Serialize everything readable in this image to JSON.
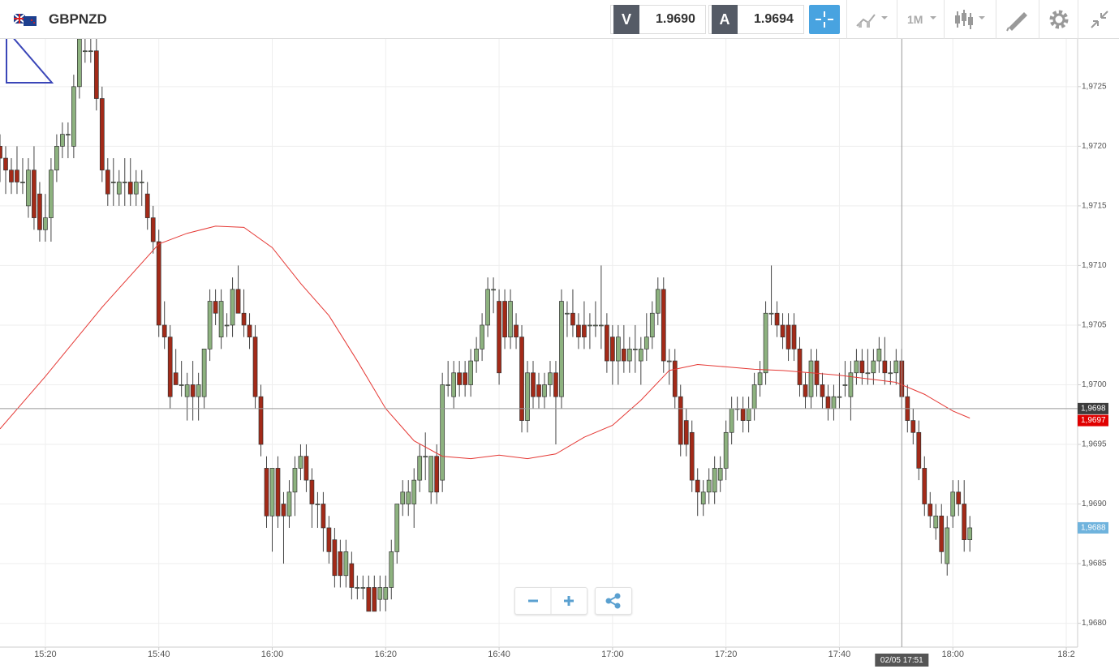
{
  "header": {
    "symbol": "GBPNZD",
    "bid_label": "V",
    "bid": "1.9690",
    "ask_label": "A",
    "ask": "1.9694",
    "timeframe": "1M"
  },
  "chart_data": {
    "type": "candlestick",
    "x": [
      "15:12",
      "15:13",
      "15:14",
      "15:15",
      "15:16",
      "15:17",
      "15:18",
      "15:19",
      "15:20",
      "15:21",
      "15:22",
      "15:23",
      "15:24",
      "15:25",
      "15:26",
      "15:27",
      "15:28",
      "15:29",
      "15:30",
      "15:31",
      "15:32",
      "15:33",
      "15:34",
      "15:35",
      "15:36",
      "15:37",
      "15:38",
      "15:39",
      "15:40",
      "15:41",
      "15:42",
      "15:43",
      "15:44",
      "15:45",
      "15:46",
      "15:47",
      "15:48",
      "15:49",
      "15:50",
      "15:51",
      "15:52",
      "15:53",
      "15:54",
      "15:55",
      "15:56",
      "15:57",
      "15:58",
      "15:59",
      "16:00",
      "16:01",
      "16:02",
      "16:03",
      "16:04",
      "16:05",
      "16:06",
      "16:07",
      "16:08",
      "16:09",
      "16:10",
      "16:11",
      "16:12",
      "16:13",
      "16:14",
      "16:15",
      "16:16",
      "16:17",
      "16:18",
      "16:19",
      "16:20",
      "16:21",
      "16:22",
      "16:23",
      "16:24",
      "16:25",
      "16:26",
      "16:27",
      "16:28",
      "16:29",
      "16:30",
      "16:31",
      "16:32",
      "16:33",
      "16:34",
      "16:35",
      "16:36",
      "16:37",
      "16:38",
      "16:39",
      "16:40",
      "16:41",
      "16:42",
      "16:43",
      "16:44",
      "16:45",
      "16:46",
      "16:47",
      "16:48",
      "16:49",
      "16:50",
      "16:51",
      "16:52",
      "16:53",
      "16:54",
      "16:55",
      "16:56",
      "16:57",
      "16:58",
      "16:59",
      "17:00",
      "17:01",
      "17:02",
      "17:03",
      "17:04",
      "17:05",
      "17:06",
      "17:07",
      "17:08",
      "17:09",
      "17:10",
      "17:11",
      "17:12",
      "17:13",
      "17:14",
      "17:15",
      "17:16",
      "17:17",
      "17:18",
      "17:19",
      "17:20",
      "17:21",
      "17:22",
      "17:23",
      "17:24",
      "17:25",
      "17:26",
      "17:27",
      "17:28",
      "17:29",
      "17:30",
      "17:31",
      "17:32",
      "17:33",
      "17:34",
      "17:35",
      "17:36",
      "17:37",
      "17:38",
      "17:39",
      "17:40",
      "17:41",
      "17:42",
      "17:43",
      "17:44",
      "17:45",
      "17:46",
      "17:47",
      "17:48",
      "17:49",
      "17:50",
      "17:51",
      "17:52",
      "17:53",
      "17:54",
      "17:55",
      "17:56",
      "17:57",
      "17:58",
      "17:59",
      "18:00",
      "18:01",
      "18:02",
      "18:03"
    ],
    "candles": [
      [
        1.972,
        1.9721,
        1.9717,
        1.9719
      ],
      [
        1.9719,
        1.972,
        1.9716,
        1.9718
      ],
      [
        1.9718,
        1.9719,
        1.9716,
        1.9717
      ],
      [
        1.9718,
        1.972,
        1.9716,
        1.9717
      ],
      [
        1.9717,
        1.9719,
        1.9716,
        1.9717
      ],
      [
        1.9715,
        1.9719,
        1.9714,
        1.9718
      ],
      [
        1.9718,
        1.972,
        1.9713,
        1.9714
      ],
      [
        1.9716,
        1.9717,
        1.9712,
        1.9713
      ],
      [
        1.9713,
        1.9716,
        1.9712,
        1.9714
      ],
      [
        1.9714,
        1.9719,
        1.9712,
        1.9718
      ],
      [
        1.9718,
        1.9721,
        1.9717,
        1.972
      ],
      [
        1.972,
        1.9722,
        1.9719,
        1.9721
      ],
      [
        1.9721,
        1.9722,
        1.9719,
        1.9721
      ],
      [
        1.972,
        1.9726,
        1.9719,
        1.9725
      ],
      [
        1.9725,
        1.9729,
        1.9724,
        1.9729
      ],
      [
        1.9728,
        1.9729,
        1.9727,
        1.9728
      ],
      [
        1.9728,
        1.9729,
        1.9727,
        1.9728
      ],
      [
        1.9728,
        1.9729,
        1.9723,
        1.9724
      ],
      [
        1.9724,
        1.9725,
        1.9717,
        1.9718
      ],
      [
        1.9718,
        1.9719,
        1.9715,
        1.9716
      ],
      [
        1.9717,
        1.9719,
        1.9715,
        1.9717
      ],
      [
        1.9716,
        1.9718,
        1.9715,
        1.9717
      ],
      [
        1.9717,
        1.9719,
        1.9715,
        1.9717
      ],
      [
        1.9717,
        1.9719,
        1.9715,
        1.9716
      ],
      [
        1.9716,
        1.9718,
        1.9715,
        1.9717
      ],
      [
        1.9717,
        1.9718,
        1.9715,
        1.9717
      ],
      [
        1.9716,
        1.9717,
        1.9713,
        1.9714
      ],
      [
        1.9714,
        1.9715,
        1.9711,
        1.9712
      ],
      [
        1.9712,
        1.9713,
        1.9704,
        1.9705
      ],
      [
        1.9705,
        1.9707,
        1.9703,
        1.9704
      ],
      [
        1.9704,
        1.9705,
        1.9698,
        1.9699
      ],
      [
        1.9701,
        1.9703,
        1.97,
        1.97
      ],
      [
        1.97,
        1.9702,
        1.9699,
        1.97
      ],
      [
        1.9699,
        1.9701,
        1.9697,
        1.97
      ],
      [
        1.97,
        1.9702,
        1.9697,
        1.9699
      ],
      [
        1.9699,
        1.9701,
        1.9697,
        1.97
      ],
      [
        1.9699,
        1.9703,
        1.9698,
        1.9703
      ],
      [
        1.9703,
        1.9708,
        1.9702,
        1.9707
      ],
      [
        1.9707,
        1.9708,
        1.9705,
        1.9706
      ],
      [
        1.9704,
        1.9708,
        1.9703,
        1.9707
      ],
      [
        1.9705,
        1.9706,
        1.9704,
        1.9705
      ],
      [
        1.9705,
        1.9709,
        1.9704,
        1.9708
      ],
      [
        1.9708,
        1.971,
        1.9706,
        1.9706
      ],
      [
        1.9706,
        1.9708,
        1.9704,
        1.9705
      ],
      [
        1.9705,
        1.9706,
        1.9703,
        1.9704
      ],
      [
        1.9704,
        1.9705,
        1.9698,
        1.9699
      ],
      [
        1.9699,
        1.97,
        1.9694,
        1.9695
      ],
      [
        1.9693,
        1.9694,
        1.9688,
        1.9689
      ],
      [
        1.9689,
        1.9693,
        1.9686,
        1.9693
      ],
      [
        1.9693,
        1.9694,
        1.9688,
        1.9689
      ],
      [
        1.969,
        1.9691,
        1.9685,
        1.9689
      ],
      [
        1.9689,
        1.9692,
        1.9688,
        1.9691
      ],
      [
        1.9691,
        1.9694,
        1.9689,
        1.9693
      ],
      [
        1.9693,
        1.9695,
        1.9692,
        1.9694
      ],
      [
        1.9694,
        1.9695,
        1.9691,
        1.9692
      ],
      [
        1.9692,
        1.9693,
        1.9688,
        1.969
      ],
      [
        1.969,
        1.9691,
        1.9688,
        1.969
      ],
      [
        1.969,
        1.9691,
        1.9686,
        1.9688
      ],
      [
        1.9688,
        1.9689,
        1.9685,
        1.9686
      ],
      [
        1.9687,
        1.9688,
        1.9683,
        1.9684
      ],
      [
        1.9686,
        1.9687,
        1.9683,
        1.9684
      ],
      [
        1.9684,
        1.9687,
        1.9683,
        1.9686
      ],
      [
        1.9685,
        1.9686,
        1.9682,
        1.9683
      ],
      [
        1.9683,
        1.9684,
        1.9682,
        1.9683
      ],
      [
        1.9683,
        1.9684,
        1.9682,
        1.9683
      ],
      [
        1.9683,
        1.9684,
        1.9681,
        1.9681
      ],
      [
        1.9683,
        1.9684,
        1.9681,
        1.9681
      ],
      [
        1.9682,
        1.9684,
        1.9681,
        1.9683
      ],
      [
        1.9682,
        1.9684,
        1.9681,
        1.9683
      ],
      [
        1.9683,
        1.9687,
        1.9682,
        1.9686
      ],
      [
        1.9686,
        1.969,
        1.9685,
        1.969
      ],
      [
        1.969,
        1.9692,
        1.9689,
        1.9691
      ],
      [
        1.969,
        1.9692,
        1.9689,
        1.9691
      ],
      [
        1.969,
        1.9693,
        1.9688,
        1.9692
      ],
      [
        1.9692,
        1.9695,
        1.9691,
        1.9694
      ],
      [
        1.9694,
        1.9696,
        1.9692,
        1.9694
      ],
      [
        1.9691,
        1.9694,
        1.969,
        1.9694
      ],
      [
        1.9694,
        1.9695,
        1.969,
        1.9691
      ],
      [
        1.9692,
        1.9701,
        1.9691,
        1.97
      ],
      [
        1.97,
        1.9702,
        1.9699,
        1.97
      ],
      [
        1.9699,
        1.9702,
        1.9698,
        1.9701
      ],
      [
        1.9701,
        1.9702,
        1.9699,
        1.97
      ],
      [
        1.9701,
        1.9702,
        1.9699,
        1.97
      ],
      [
        1.97,
        1.9703,
        1.9699,
        1.9702
      ],
      [
        1.9702,
        1.9704,
        1.9701,
        1.9703
      ],
      [
        1.9703,
        1.9706,
        1.9702,
        1.9705
      ],
      [
        1.9705,
        1.9709,
        1.9704,
        1.9708
      ],
      [
        1.9708,
        1.9709,
        1.9706,
        1.9708
      ],
      [
        1.9707,
        1.9708,
        1.97,
        1.9701
      ],
      [
        1.9707,
        1.9708,
        1.9703,
        1.9704
      ],
      [
        1.9704,
        1.9708,
        1.9703,
        1.9707
      ],
      [
        1.9705,
        1.9706,
        1.9703,
        1.9704
      ],
      [
        1.9704,
        1.9705,
        1.9696,
        1.9697
      ],
      [
        1.9697,
        1.9702,
        1.9696,
        1.9701
      ],
      [
        1.9701,
        1.9702,
        1.9698,
        1.9699
      ],
      [
        1.97,
        1.9701,
        1.9698,
        1.9699
      ],
      [
        1.9699,
        1.9701,
        1.9698,
        1.97
      ],
      [
        1.97,
        1.9702,
        1.9699,
        1.9701
      ],
      [
        1.9701,
        1.9702,
        1.9695,
        1.9699
      ],
      [
        1.9699,
        1.9708,
        1.9698,
        1.9707
      ],
      [
        1.9706,
        1.9707,
        1.9704,
        1.9706
      ],
      [
        1.9706,
        1.9708,
        1.9704,
        1.9705
      ],
      [
        1.9705,
        1.9706,
        1.9703,
        1.9704
      ],
      [
        1.9705,
        1.9707,
        1.9703,
        1.9704
      ],
      [
        1.9705,
        1.9706,
        1.9703,
        1.9705
      ],
      [
        1.9705,
        1.9707,
        1.9704,
        1.9705
      ],
      [
        1.9705,
        1.971,
        1.9703,
        1.9705
      ],
      [
        1.9705,
        1.9706,
        1.9701,
        1.9702
      ],
      [
        1.9704,
        1.9705,
        1.97,
        1.9702
      ],
      [
        1.9702,
        1.9705,
        1.97,
        1.9704
      ],
      [
        1.9703,
        1.9705,
        1.9701,
        1.9702
      ],
      [
        1.9702,
        1.9704,
        1.9701,
        1.9703
      ],
      [
        1.9703,
        1.9705,
        1.9701,
        1.9703
      ],
      [
        1.9702,
        1.9704,
        1.97,
        1.9703
      ],
      [
        1.9703,
        1.9706,
        1.9702,
        1.9704
      ],
      [
        1.9704,
        1.9707,
        1.9703,
        1.9706
      ],
      [
        1.9706,
        1.9709,
        1.9705,
        1.9708
      ],
      [
        1.9708,
        1.9709,
        1.9701,
        1.9702
      ],
      [
        1.9702,
        1.9703,
        1.97,
        1.9702
      ],
      [
        1.9702,
        1.9703,
        1.9698,
        1.9699
      ],
      [
        1.9699,
        1.97,
        1.9694,
        1.9695
      ],
      [
        1.9697,
        1.9698,
        1.9694,
        1.9695
      ],
      [
        1.9696,
        1.9697,
        1.9691,
        1.9692
      ],
      [
        1.9692,
        1.9693,
        1.9689,
        1.9691
      ],
      [
        1.969,
        1.9692,
        1.9689,
        1.9691
      ],
      [
        1.9691,
        1.9693,
        1.969,
        1.9692
      ],
      [
        1.9691,
        1.9694,
        1.969,
        1.9693
      ],
      [
        1.9692,
        1.9694,
        1.9691,
        1.9693
      ],
      [
        1.9693,
        1.9697,
        1.9692,
        1.9696
      ],
      [
        1.9696,
        1.9699,
        1.9695,
        1.9698
      ],
      [
        1.9698,
        1.9699,
        1.9697,
        1.9698
      ],
      [
        1.9698,
        1.9699,
        1.9696,
        1.9697
      ],
      [
        1.9697,
        1.9699,
        1.9696,
        1.9698
      ],
      [
        1.9698,
        1.9701,
        1.9697,
        1.97
      ],
      [
        1.97,
        1.9702,
        1.9699,
        1.9701
      ],
      [
        1.9701,
        1.9707,
        1.97,
        1.9706
      ],
      [
        1.9706,
        1.971,
        1.9705,
        1.9706
      ],
      [
        1.9706,
        1.9707,
        1.9704,
        1.9705
      ],
      [
        1.9705,
        1.9706,
        1.9703,
        1.9704
      ],
      [
        1.9705,
        1.9706,
        1.9702,
        1.9703
      ],
      [
        1.9705,
        1.9706,
        1.9702,
        1.9703
      ],
      [
        1.9703,
        1.9704,
        1.9699,
        1.97
      ],
      [
        1.97,
        1.9701,
        1.9698,
        1.9699
      ],
      [
        1.9699,
        1.9703,
        1.9698,
        1.9702
      ],
      [
        1.9702,
        1.9703,
        1.9699,
        1.97
      ],
      [
        1.97,
        1.9701,
        1.9698,
        1.9699
      ],
      [
        1.9699,
        1.97,
        1.9697,
        1.9698
      ],
      [
        1.9698,
        1.97,
        1.9697,
        1.9699
      ],
      [
        1.9699,
        1.9701,
        1.9698,
        1.9699
      ],
      [
        1.97,
        1.9702,
        1.9699,
        1.97
      ],
      [
        1.9699,
        1.9702,
        1.9697,
        1.9701
      ],
      [
        1.9701,
        1.9703,
        1.97,
        1.9702
      ],
      [
        1.9702,
        1.9703,
        1.97,
        1.9701
      ],
      [
        1.9701,
        1.9703,
        1.97,
        1.9701
      ],
      [
        1.9701,
        1.9703,
        1.97,
        1.9702
      ],
      [
        1.9702,
        1.9704,
        1.9701,
        1.9703
      ],
      [
        1.9702,
        1.9704,
        1.97,
        1.9701
      ],
      [
        1.9701,
        1.9702,
        1.97,
        1.9701
      ],
      [
        1.9701,
        1.9703,
        1.97,
        1.9702
      ],
      [
        1.9702,
        1.9703,
        1.9698,
        1.9699
      ],
      [
        1.9699,
        1.97,
        1.9696,
        1.9697
      ],
      [
        1.9697,
        1.9698,
        1.9695,
        1.9696
      ],
      [
        1.9696,
        1.9697,
        1.9692,
        1.9693
      ],
      [
        1.9693,
        1.9694,
        1.9689,
        1.969
      ],
      [
        1.969,
        1.9691,
        1.9688,
        1.9689
      ],
      [
        1.9688,
        1.969,
        1.9687,
        1.9689
      ],
      [
        1.9689,
        1.969,
        1.9685,
        1.9686
      ],
      [
        1.9685,
        1.9689,
        1.9684,
        1.9688
      ],
      [
        1.9689,
        1.9692,
        1.9688,
        1.9691
      ],
      [
        1.9691,
        1.9692,
        1.9689,
        1.969
      ],
      [
        1.969,
        1.9692,
        1.9686,
        1.9687
      ],
      [
        1.9687,
        1.9689,
        1.9686,
        1.9688
      ]
    ],
    "up_color": "#8db27f",
    "down_color": "#a32a18",
    "moving_average": {
      "color": "#e53935",
      "x": [
        "15:12",
        "15:20",
        "15:30",
        "15:40",
        "15:45",
        "15:50",
        "15:55",
        "16:00",
        "16:05",
        "16:10",
        "16:15",
        "16:20",
        "16:25",
        "16:30",
        "16:35",
        "16:40",
        "16:45",
        "16:50",
        "16:55",
        "17:00",
        "17:05",
        "17:10",
        "17:15",
        "17:20",
        "17:25",
        "17:30",
        "17:35",
        "17:40",
        "17:45",
        "17:50",
        "17:55",
        "18:00",
        "18:03"
      ],
      "values": [
        1.96963,
        1.97007,
        1.97065,
        1.97118,
        1.97127,
        1.97133,
        1.97132,
        1.97115,
        1.97085,
        1.97058,
        1.9702,
        1.9698,
        1.96953,
        1.9694,
        1.96938,
        1.96941,
        1.96938,
        1.96942,
        1.96956,
        1.96966,
        1.96987,
        1.97012,
        1.97017,
        1.97015,
        1.97013,
        1.97012,
        1.9701,
        1.97008,
        1.97005,
        1.97002,
        1.96992,
        1.96978,
        1.96972
      ]
    },
    "xlim": [
      "15:12",
      "18:22"
    ],
    "xticks": [
      "15:20",
      "15:40",
      "16:00",
      "16:20",
      "16:40",
      "17:00",
      "17:20",
      "17:40",
      "18:00",
      {
        "value": "18:20",
        "label": "18:2"
      }
    ],
    "ylim": [
      1.9678,
      1.9729
    ],
    "yticks": [
      {
        "value": 1.968,
        "label": "1,9680"
      },
      {
        "value": 1.9685,
        "label": "1,9685"
      },
      {
        "value": 1.969,
        "label": "1,9690"
      },
      {
        "value": 1.9695,
        "label": "1,9695"
      },
      {
        "value": 1.97,
        "label": "1,9700"
      },
      {
        "value": 1.9705,
        "label": "1,9705"
      },
      {
        "value": 1.971,
        "label": "1,9710"
      },
      {
        "value": 1.9715,
        "label": "1,9715"
      },
      {
        "value": 1.972,
        "label": "1,9720"
      },
      {
        "value": 1.9725,
        "label": "1,9725"
      }
    ],
    "grid": true,
    "price_labels": [
      {
        "value": 1.9698,
        "label": "1,9698",
        "color": "#3d3d3d"
      },
      {
        "value": 1.9697,
        "label": "1,9697",
        "color": "#e00000"
      },
      {
        "value": 1.9688,
        "label": "1,9688",
        "color": "#6fb3dd"
      }
    ],
    "crosshair": {
      "x": "17:51",
      "y": 1.9698,
      "label": "02/05 17:51"
    }
  }
}
